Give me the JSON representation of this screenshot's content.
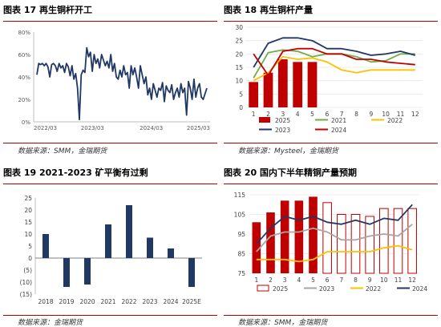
{
  "panels": [
    {
      "title": "图表 17  再生铜杆开工",
      "source": "数据来源：SMM，金瑞期货"
    },
    {
      "title": "图表 18  再生铜杆产量",
      "source": "数据来源：Mysteel，金瑞期货"
    },
    {
      "title": "图表 19  2021-2023 矿平衡有过剩",
      "source": "数据来源：金瑞期货"
    },
    {
      "title": "图表 20  国内下半年精铜产量预期",
      "source": "数据来源：SMM，金瑞期货"
    }
  ],
  "chart_data": [
    {
      "type": "line",
      "y_ticks": [
        "0%",
        "20%",
        "40%",
        "60%",
        "80%"
      ],
      "x_ticks": [
        "2022/03",
        "2023/03",
        "2024/03",
        "2025/03"
      ],
      "ylim": [
        0,
        80
      ],
      "series": [
        {
          "color": "#1f3864",
          "values": [
            42,
            52,
            51,
            52,
            50,
            52,
            49,
            40,
            51,
            52,
            50,
            45,
            52,
            48,
            50,
            44,
            52,
            49,
            41,
            50,
            38,
            43,
            30,
            2,
            42,
            46,
            44,
            66,
            58,
            62,
            45,
            60,
            52,
            56,
            48,
            60,
            55,
            50,
            54,
            48,
            60,
            45,
            52,
            40,
            38,
            46,
            40,
            50,
            42,
            44,
            30,
            50,
            42,
            48,
            40,
            30,
            50,
            42,
            34,
            40,
            24,
            30,
            20,
            34,
            28,
            22,
            30,
            28,
            35,
            18,
            32,
            28,
            26,
            33,
            20,
            26,
            30,
            22,
            34,
            26,
            30,
            6,
            36,
            30,
            20,
            38,
            22,
            30,
            34,
            22,
            20,
            25,
            30
          ]
        }
      ]
    },
    {
      "type": "bar+line",
      "x": [
        1,
        2,
        3,
        4,
        5,
        6,
        7,
        8,
        9,
        10,
        11,
        12
      ],
      "ylim": [
        0,
        30
      ],
      "y_ticks": [
        0,
        5,
        10,
        15,
        20,
        25,
        30
      ],
      "bars": {
        "name": "2025",
        "color": "#c00000",
        "values": [
          9.5,
          13,
          18,
          17,
          17
        ]
      },
      "series": [
        {
          "name": "2021",
          "color": "#70ad47",
          "values": [
            11,
            20.5,
            21.5,
            21,
            19,
            20,
            20,
            19,
            17,
            17.5,
            20,
            20
          ]
        },
        {
          "name": "2022",
          "color": "#ffc000",
          "values": [
            10,
            13,
            19,
            18,
            18.5,
            17,
            14,
            13,
            14,
            14,
            14,
            14
          ]
        },
        {
          "name": "2023",
          "color": "#1f3864",
          "values": [
            15,
            24,
            26,
            26,
            25,
            22,
            22,
            21,
            19.5,
            20,
            21,
            19.5
          ]
        },
        {
          "name": "2024",
          "color": "#c00000",
          "values": [
            20,
            12,
            21,
            22,
            22,
            20,
            20,
            18,
            18,
            17,
            16.5,
            16
          ]
        }
      ]
    },
    {
      "type": "bar",
      "categories": [
        "2018",
        "2019",
        "2020",
        "2021",
        "2022",
        "2023",
        "2024",
        "2025E"
      ],
      "values": [
        10,
        -12,
        -11,
        14,
        22,
        8.5,
        4,
        -12
      ],
      "ylim": [
        -15,
        25
      ],
      "y_ticks": [
        "(15)",
        "(10)",
        "(5)",
        "0",
        "5",
        "10",
        "15",
        "20",
        "25"
      ],
      "color": "#1f3864"
    },
    {
      "type": "bar+line",
      "x": [
        1,
        2,
        3,
        4,
        5,
        6,
        7,
        8,
        9,
        10,
        11,
        12
      ],
      "ylim": [
        75,
        115
      ],
      "y_ticks": [
        75,
        85,
        95,
        105,
        115
      ],
      "bars": {
        "name": "2025",
        "color": "#c00000",
        "values": [
          101,
          106,
          112,
          112,
          114,
          111,
          105,
          105,
          104,
          108,
          108,
          108
        ],
        "forecast_from_index": 5
      },
      "series": [
        {
          "name": "2023",
          "color": "#a6a6a6",
          "values": [
            86,
            94,
            96,
            96,
            98,
            96,
            92,
            92,
            94,
            95,
            94,
            100
          ]
        },
        {
          "name": "2022",
          "color": "#ffc000",
          "values": [
            82,
            82,
            82,
            81,
            82,
            86,
            86,
            86,
            86,
            88,
            89,
            87
          ]
        },
        {
          "name": "2024",
          "color": "#1f3864",
          "values": [
            90,
            98,
            104,
            102,
            104,
            101,
            100,
            102,
            100,
            103,
            102,
            110
          ]
        }
      ]
    }
  ]
}
